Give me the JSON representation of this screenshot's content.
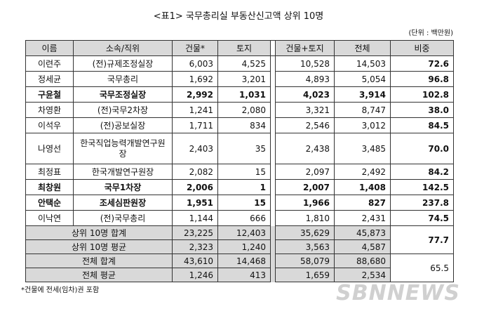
{
  "title": "<표1> 국무총리실 부동산신고액 상위 10명",
  "unit": "(단위 : 백만원)",
  "table": {
    "header": [
      "이름",
      "소속/직위",
      "건물*",
      "토지",
      "건물+토지",
      "전체",
      "비중"
    ],
    "rows": [
      {
        "cells": [
          "이련주",
          "(전)규제조정실장",
          "6,003",
          "4,525",
          "10,528",
          "14,503",
          "72.6"
        ],
        "bold": false
      },
      {
        "cells": [
          "정세균",
          "국무총리",
          "1,692",
          "3,201",
          "4,893",
          "5,054",
          "96.8"
        ],
        "bold": false
      },
      {
        "cells": [
          "구윤철",
          "국무조정실장",
          "2,992",
          "1,031",
          "4,023",
          "3,914",
          "102.8"
        ],
        "bold": true
      },
      {
        "cells": [
          "차영환",
          "(전)국무2차장",
          "1,241",
          "2,080",
          "3,321",
          "8,747",
          "38.0"
        ],
        "bold": false
      },
      {
        "cells": [
          "이석우",
          "(전)공보실장",
          "1,711",
          "834",
          "2,546",
          "3,012",
          "84.5"
        ],
        "bold": false
      },
      {
        "cells": [
          "나영선",
          "한국직업능력개발연구원장",
          "2,403",
          "35",
          "2,438",
          "3,485",
          "70.0"
        ],
        "bold": false,
        "tall": true
      },
      {
        "cells": [
          "최정표",
          "한국개발연구원장",
          "2,082",
          "15",
          "2,097",
          "2,492",
          "84.2"
        ],
        "bold": false
      },
      {
        "cells": [
          "최창원",
          "국무1차장",
          "2,006",
          "1",
          "2,007",
          "1,408",
          "142.5"
        ],
        "bold": true
      },
      {
        "cells": [
          "안택순",
          "조세심판원장",
          "1,951",
          "15",
          "1,966",
          "827",
          "237.8"
        ],
        "bold": true
      },
      {
        "cells": [
          "이낙연",
          "(전)국무총리",
          "1,144",
          "666",
          "1,810",
          "2,431",
          "74.5"
        ],
        "bold": false
      }
    ],
    "summary": [
      {
        "label": "상위 10명 합계",
        "cells": [
          "23,225",
          "12,403",
          "35,629",
          "45,873"
        ],
        "share": "77.7"
      },
      {
        "label": "상위 10명 평균",
        "cells": [
          "2,323",
          "1,240",
          "3,563",
          "4,587"
        ]
      },
      {
        "label": "전체 합계",
        "cells": [
          "43,610",
          "14,468",
          "58,079",
          "88,680"
        ],
        "share": "65.5"
      },
      {
        "label": "전체 평균",
        "cells": [
          "1,246",
          "413",
          "1,659",
          "2,534"
        ]
      }
    ]
  },
  "footnote": "*건물에 전세(임차)권 포함",
  "watermark": "SBNNEWS"
}
